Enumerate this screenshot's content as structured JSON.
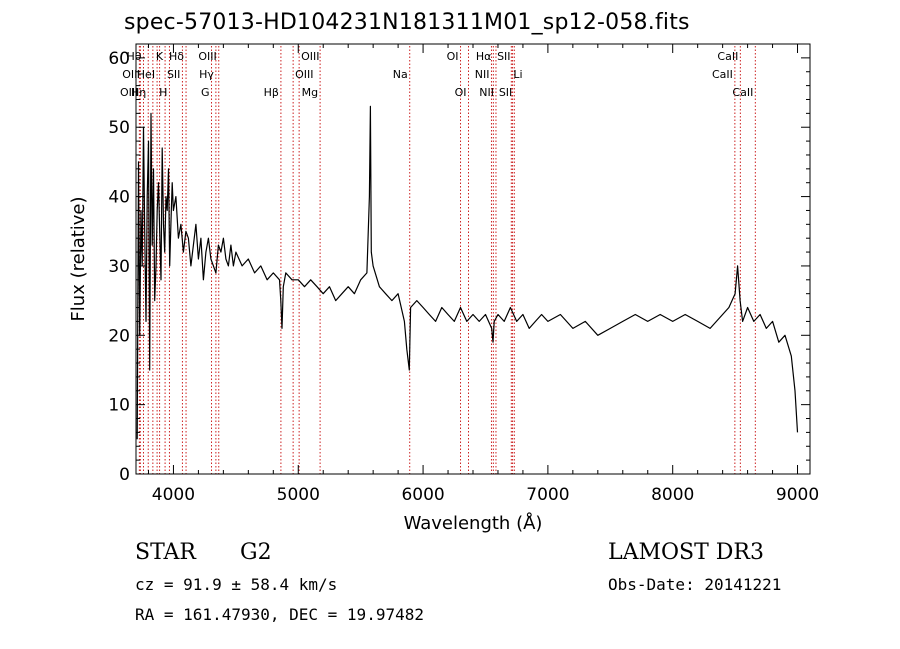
{
  "chart_data": {
    "type": "line",
    "title": "spec-57013-HD104231N181311M01_sp12-058.fits",
    "xlabel": "Wavelength (Å)",
    "ylabel": "Flux (relative)",
    "xlim": [
      3700,
      9100
    ],
    "ylim": [
      0,
      62
    ],
    "x_ticks": [
      4000,
      5000,
      6000,
      7000,
      8000,
      9000
    ],
    "y_ticks": [
      0,
      10,
      20,
      30,
      40,
      50,
      60
    ],
    "line_color": "#000000",
    "marker_color": "#cc2222",
    "spectrum": {
      "name": "flux",
      "x": [
        3710,
        3720,
        3730,
        3740,
        3750,
        3760,
        3770,
        3780,
        3790,
        3800,
        3810,
        3820,
        3830,
        3840,
        3850,
        3860,
        3870,
        3880,
        3890,
        3900,
        3910,
        3920,
        3930,
        3940,
        3950,
        3960,
        3970,
        3980,
        3990,
        4000,
        4020,
        4040,
        4060,
        4080,
        4100,
        4120,
        4140,
        4160,
        4180,
        4200,
        4220,
        4240,
        4260,
        4280,
        4300,
        4320,
        4340,
        4360,
        4380,
        4400,
        4420,
        4440,
        4460,
        4480,
        4500,
        4550,
        4600,
        4650,
        4700,
        4750,
        4800,
        4850,
        4860,
        4870,
        4880,
        4900,
        4950,
        5000,
        5050,
        5100,
        5150,
        5200,
        5250,
        5300,
        5350,
        5400,
        5450,
        5500,
        5550,
        5570,
        5578,
        5585,
        5600,
        5650,
        5700,
        5750,
        5800,
        5850,
        5870,
        5890,
        5900,
        5950,
        6000,
        6050,
        6100,
        6150,
        6200,
        6250,
        6300,
        6350,
        6400,
        6450,
        6500,
        6550,
        6560,
        6570,
        6600,
        6650,
        6700,
        6750,
        6800,
        6850,
        6900,
        6950,
        7000,
        7100,
        7200,
        7300,
        7400,
        7500,
        7600,
        7700,
        7800,
        7900,
        8000,
        8100,
        8200,
        8300,
        8400,
        8450,
        8500,
        8520,
        8540,
        8560,
        8600,
        8650,
        8700,
        8750,
        8800,
        8850,
        8900,
        8950,
        8980,
        9000
      ],
      "y": [
        5,
        45,
        20,
        38,
        30,
        50,
        35,
        22,
        40,
        48,
        15,
        52,
        33,
        44,
        25,
        30,
        38,
        42,
        35,
        28,
        47,
        36,
        32,
        40,
        38,
        44,
        30,
        36,
        42,
        38,
        40,
        34,
        36,
        32,
        35,
        34,
        30,
        33,
        36,
        31,
        34,
        28,
        32,
        34,
        31,
        30,
        29,
        33,
        32,
        34,
        31,
        30,
        33,
        30,
        32,
        30,
        31,
        29,
        30,
        28,
        29,
        28,
        25,
        21,
        27,
        29,
        28,
        28,
        27,
        28,
        27,
        26,
        27,
        25,
        26,
        27,
        26,
        28,
        29,
        40,
        53,
        32,
        30,
        27,
        26,
        25,
        26,
        22,
        18,
        15,
        24,
        25,
        24,
        23,
        22,
        24,
        23,
        22,
        24,
        22,
        23,
        22,
        23,
        21,
        19,
        22,
        23,
        22,
        24,
        22,
        23,
        21,
        22,
        23,
        22,
        23,
        21,
        22,
        20,
        21,
        22,
        23,
        22,
        23,
        22,
        23,
        22,
        21,
        23,
        24,
        26,
        30,
        25,
        22,
        24,
        22,
        23,
        21,
        22,
        19,
        20,
        17,
        12,
        6
      ]
    },
    "line_markers": [
      {
        "x": 3727,
        "label": "OII",
        "row": 1,
        "side": "left"
      },
      {
        "x": 3735,
        "label": "OIII",
        "row": 2,
        "side": "left"
      },
      {
        "x": 3760,
        "label": "Hθ",
        "row": 0,
        "side": "left"
      },
      {
        "x": 3798,
        "label": "Hη",
        "row": 2,
        "side": "left"
      },
      {
        "x": 3835,
        "label": "",
        "row": -1,
        "side": "left"
      },
      {
        "x": 3869,
        "label": "HeI",
        "row": 1,
        "side": "left"
      },
      {
        "x": 3889,
        "label": "",
        "row": -1,
        "side": "left"
      },
      {
        "x": 3933,
        "label": "K",
        "row": 0,
        "side": "left"
      },
      {
        "x": 3968,
        "label": "H",
        "row": 2,
        "side": "left"
      },
      {
        "x": 4072,
        "label": "SII",
        "row": 1,
        "side": "left"
      },
      {
        "x": 4101,
        "label": "Hδ",
        "row": 0,
        "side": "left"
      },
      {
        "x": 4305,
        "label": "G",
        "row": 2,
        "side": "left"
      },
      {
        "x": 4340,
        "label": "Hγ",
        "row": 1,
        "side": "left"
      },
      {
        "x": 4363,
        "label": "OIII",
        "row": 0,
        "side": "left"
      },
      {
        "x": 4861,
        "label": "Hβ",
        "row": 2,
        "side": "left"
      },
      {
        "x": 4959,
        "label": "OIII",
        "row": 1,
        "side": "right"
      },
      {
        "x": 5007,
        "label": "OIII",
        "row": 0,
        "side": "right"
      },
      {
        "x": 5175,
        "label": "Mg",
        "row": 2,
        "side": "left"
      },
      {
        "x": 5893,
        "label": "Na",
        "row": 1,
        "side": "left"
      },
      {
        "x": 6300,
        "label": "OI",
        "row": 0,
        "side": "left"
      },
      {
        "x": 6364,
        "label": "OI",
        "row": 2,
        "side": "left"
      },
      {
        "x": 6548,
        "label": "NII",
        "row": 1,
        "side": "left"
      },
      {
        "x": 6563,
        "label": "Hα",
        "row": 0,
        "side": "left"
      },
      {
        "x": 6584,
        "label": "NII",
        "row": 2,
        "side": "left"
      },
      {
        "x": 6707,
        "label": "Li",
        "row": 1,
        "side": "right"
      },
      {
        "x": 6717,
        "label": "SII",
        "row": 0,
        "side": "left"
      },
      {
        "x": 6731,
        "label": "SII",
        "row": 2,
        "side": "left"
      },
      {
        "x": 8498,
        "label": "CaII",
        "row": 1,
        "side": "left"
      },
      {
        "x": 8542,
        "label": "CaII",
        "row": 0,
        "side": "left"
      },
      {
        "x": 8662,
        "label": "CaII",
        "row": 2,
        "side": "left"
      }
    ]
  },
  "info": {
    "object_class": "STAR",
    "subclass": "G2",
    "survey": "LAMOST DR3",
    "cz": "cz = 91.9 ± 58.4 km/s",
    "obs_date": "Obs-Date: 20141221",
    "radec": "RA = 161.47930, DEC =  19.97482"
  }
}
